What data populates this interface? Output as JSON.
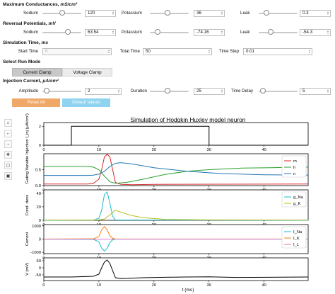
{
  "max_cond": {
    "title": "Maximum Conductances, ",
    "unit": "mS/cm²",
    "sodium": {
      "label": "Sodium",
      "value": "120",
      "frac": 0.5
    },
    "potassium": {
      "label": "Potassium",
      "value": "36",
      "frac": 0.45
    },
    "leak": {
      "label": "Leak",
      "value": "0.3",
      "frac": 0.2
    }
  },
  "rev_pot": {
    "title": "Reversal Potentials, ",
    "unit": "mV",
    "sodium": {
      "label": "Sodium",
      "value": "63.54",
      "frac": 0.65
    },
    "potassium": {
      "label": "Potassium",
      "value": "-74.16",
      "frac": 0.2
    },
    "leak": {
      "label": "Leak",
      "value": "-54.3",
      "frac": 0.3
    }
  },
  "sim_time": {
    "title": "Simulation Time, ",
    "unit": "ms",
    "start": {
      "label": "Start Time",
      "value": "0"
    },
    "total": {
      "label": "Total Time",
      "value": "50"
    },
    "step": {
      "label": "Time Step",
      "value": "0.01"
    }
  },
  "run_mode": {
    "title": "Select Run Mode",
    "current": "Current Clamp",
    "voltage": "Voltage Clamp"
  },
  "inj": {
    "title": "Injection Current, ",
    "unit": "μA/cm²",
    "amplitude": {
      "label": "Amplitude",
      "value": "2",
      "frac": 0.1
    },
    "duration": {
      "label": "Duration",
      "value": "25",
      "frac": 0.45
    },
    "delay": {
      "label": "Time Delay",
      "value": "5",
      "frac": 0.1
    }
  },
  "buttons": {
    "reset": "Reset All",
    "defaults": "Default Values"
  },
  "colors": {
    "reset": "#f0a868",
    "defaults": "#8ed3ef",
    "m": "#d62728",
    "h": "#2ca02c",
    "n": "#1f77b4",
    "gna": "#17becf",
    "gk": "#bcbd22",
    "ik": "#ff7f0e",
    "il": "#e377c2",
    "v": "#000000"
  },
  "toolbar": [
    "home-icon",
    "back-arrow-icon",
    "forward-arrow-icon",
    "pan-icon",
    "zoom-rect-icon",
    "save-icon"
  ],
  "toolbar_glyphs": [
    "⌂",
    "←",
    "→",
    "✥",
    "▢",
    "▣"
  ],
  "chart_data": {
    "type": "line",
    "title": "Simulation of Hodgkin Huxley model neuron",
    "xlabel": "t (ms)",
    "xlim": [
      0,
      48
    ],
    "xticks": [
      0,
      10,
      20,
      30,
      40
    ],
    "panels": [
      {
        "ylabel": "Injection I_inj (μA/cm²)",
        "ylim": [
          0,
          2.4
        ],
        "yticks": [
          0,
          2
        ],
        "series": [
          {
            "name": "",
            "color": "#000000",
            "x": [
              0,
              5,
              5,
              30,
              30,
              48
            ],
            "y": [
              0,
              0,
              2,
              2,
              0,
              0
            ]
          }
        ]
      },
      {
        "ylabel": "Gating Variable",
        "ylim": [
          0,
          1
        ],
        "yticks": [
          0.0,
          0.5
        ],
        "series": [
          {
            "name": "m",
            "color": "#d62728",
            "x": [
              0,
              8,
              9,
              10,
              10.5,
              11,
              11.5,
              12,
              12.5,
              13,
              14,
              16,
              20,
              48
            ],
            "y": [
              0.05,
              0.05,
              0.07,
              0.2,
              0.5,
              0.9,
              0.98,
              0.9,
              0.5,
              0.1,
              0.04,
              0.03,
              0.04,
              0.05
            ]
          },
          {
            "name": "h",
            "color": "#2ca02c",
            "x": [
              0,
              8,
              9,
              10,
              11,
              12,
              13,
              15,
              18,
              22,
              26,
              30,
              36,
              48
            ],
            "y": [
              0.6,
              0.6,
              0.58,
              0.5,
              0.3,
              0.12,
              0.07,
              0.1,
              0.2,
              0.35,
              0.45,
              0.5,
              0.55,
              0.58
            ]
          },
          {
            "name": "n",
            "color": "#1f77b4",
            "x": [
              0,
              8,
              9,
              10,
              11,
              12,
              13,
              14,
              16,
              20,
              26,
              32,
              40,
              48
            ],
            "y": [
              0.32,
              0.32,
              0.33,
              0.36,
              0.45,
              0.6,
              0.7,
              0.72,
              0.68,
              0.56,
              0.45,
              0.38,
              0.34,
              0.33
            ]
          }
        ]
      },
      {
        "ylabel": "Cond. dens",
        "ylim": [
          0,
          45
        ],
        "yticks": [
          0,
          20,
          40
        ],
        "series": [
          {
            "name": "g_Na",
            "color": "#17becf",
            "x": [
              0,
              9,
              10,
              10.5,
              11,
              11.5,
              12,
              12.5,
              13,
              48
            ],
            "y": [
              0,
              0.2,
              3,
              15,
              38,
              42,
              25,
              6,
              0.5,
              0
            ]
          },
          {
            "name": "g_K",
            "color": "#bcbd22",
            "x": [
              0,
              9,
              10,
              11,
              12,
              13,
              14,
              16,
              18,
              22,
              30,
              48
            ],
            "y": [
              0.4,
              0.4,
              0.6,
              2,
              8,
              15,
              12,
              7,
              4,
              1.5,
              0.6,
              0.4
            ]
          }
        ]
      },
      {
        "ylabel": "Current",
        "ylim": [
          -1100,
          1100
        ],
        "yticks": [
          -1000,
          0,
          1000
        ],
        "series": [
          {
            "name": "I_Na",
            "color": "#17becf",
            "x": [
              0,
              9,
              10,
              10.5,
              11,
              11.5,
              12,
              12.5,
              13,
              48
            ],
            "y": [
              -5,
              -20,
              -200,
              -700,
              -900,
              -700,
              -250,
              -60,
              -5,
              -5
            ]
          },
          {
            "name": "I_K",
            "color": "#ff7f0e",
            "x": [
              0,
              9,
              10,
              10.5,
              11,
              11.5,
              12,
              12.5,
              13,
              48
            ],
            "y": [
              5,
              20,
              200,
              700,
              950,
              700,
              250,
              60,
              5,
              5
            ]
          },
          {
            "name": "I_L",
            "color": "#e377c2",
            "x": [
              0,
              48
            ],
            "y": [
              0,
              0
            ]
          }
        ]
      },
      {
        "ylabel": "V (mV)",
        "ylim": [
          -90,
          70
        ],
        "yticks": [
          -50,
          0,
          50
        ],
        "series": [
          {
            "name": "",
            "color": "#000000",
            "x": [
              0,
              5,
              9,
              10,
              10.5,
              11,
              11.5,
              12,
              12.5,
              13,
              14,
              15,
              16,
              18,
              22,
              26,
              30,
              35,
              48
            ],
            "y": [
              -65,
              -65,
              -60,
              -45,
              0,
              40,
              55,
              30,
              -20,
              -70,
              -76,
              -75,
              -73,
              -70,
              -67,
              -65,
              -64,
              -68,
              -65
            ]
          }
        ]
      }
    ]
  }
}
